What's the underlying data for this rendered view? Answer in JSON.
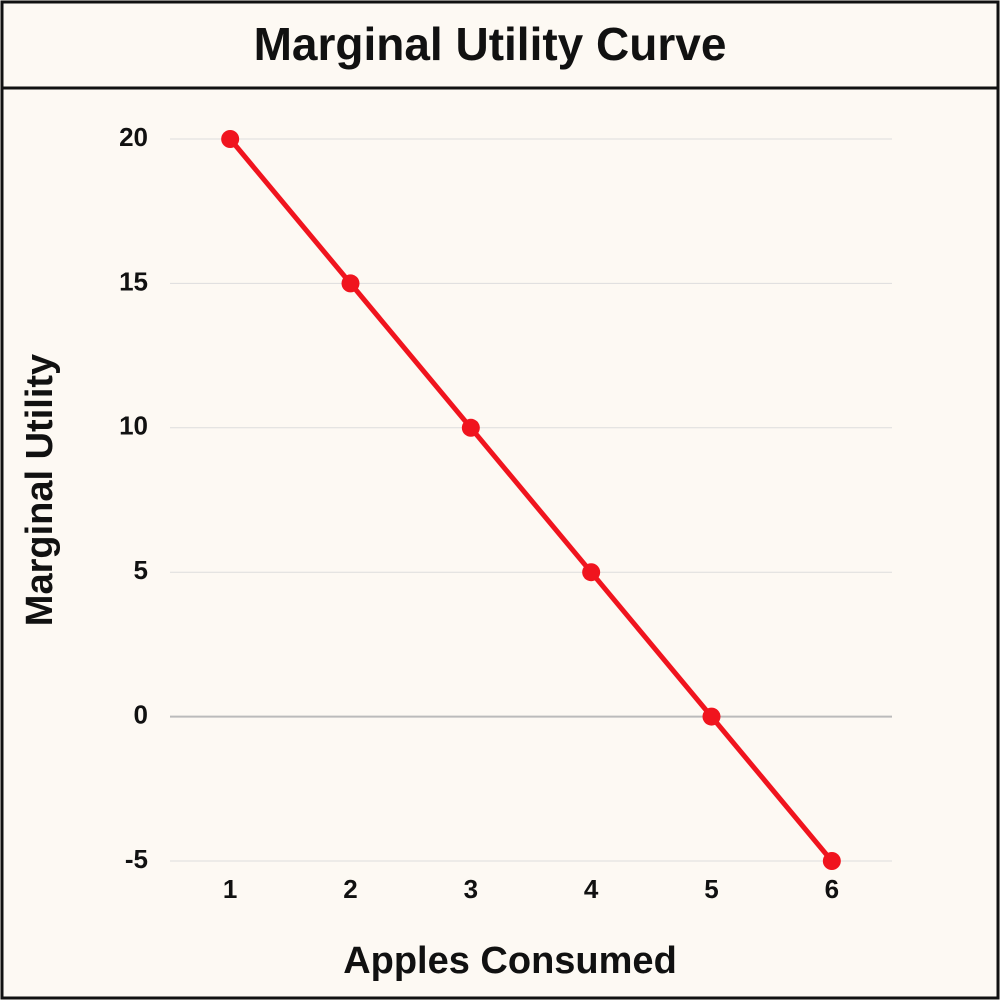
{
  "chart_data": {
    "type": "line",
    "title": "Marginal Utility Curve",
    "x_label": "Apples Consumed",
    "y_label": "Marginal Utility",
    "x": [
      1,
      2,
      3,
      4,
      5,
      6
    ],
    "values": [
      20,
      15,
      10,
      5,
      0,
      -5
    ],
    "color": "#f0141e",
    "xlim": [
      0.5,
      6.5
    ],
    "xticks": [
      1,
      2,
      3,
      4,
      5,
      6
    ],
    "ylim": [
      -5,
      20
    ],
    "yticks": [
      -5,
      0,
      5,
      10,
      15,
      20
    ],
    "grid": true
  }
}
